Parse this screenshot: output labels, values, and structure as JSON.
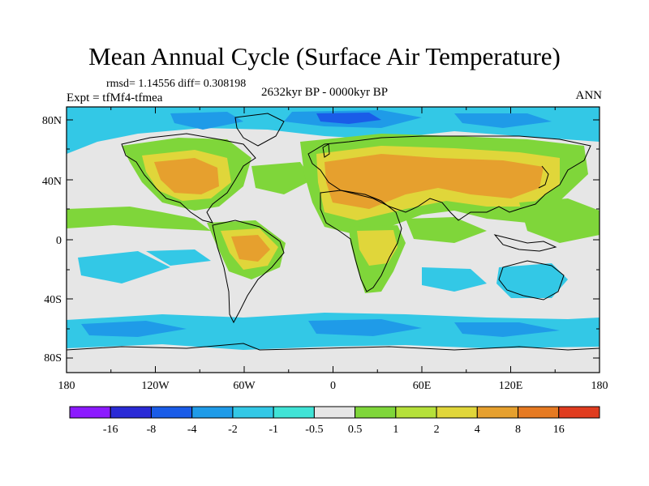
{
  "title": "Mean Annual Cycle (Surface Air Temperature)",
  "stats": "rmsd= 1.14556 diff= 0.308198",
  "experiment": "Expt = tfMf4-tfmea",
  "period": "2632kyr BP - 0000kyr BP",
  "season": "ANN",
  "axes": {
    "x_ticks": [
      "180",
      "120W",
      "60W",
      "0",
      "60E",
      "120E",
      "180"
    ],
    "y_ticks": [
      "80N",
      "40N",
      "0",
      "40S",
      "80S"
    ]
  },
  "colorbar": {
    "colors": [
      "#8c1aff",
      "#2a2ad6",
      "#1a5ce8",
      "#1f9be8",
      "#33c8e6",
      "#40e3d6",
      "#e6e6e6",
      "#7fd63a",
      "#b5e03a",
      "#e0d63a",
      "#e6a02e",
      "#e67a22",
      "#e03c1f"
    ],
    "labels": [
      "-16",
      "-8",
      "-4",
      "-2",
      "-1",
      "-0.5",
      "0.5",
      "1",
      "2",
      "4",
      "8",
      "16"
    ]
  },
  "palette": {
    "neutral": "#e6e6e6",
    "cool1": "#33c8e6",
    "cool2": "#40e3d6",
    "cool3": "#1f9be8",
    "cool4": "#1a5ce8",
    "warm1": "#7fd63a",
    "warm2": "#b5e03a",
    "warm3": "#e0d63a",
    "warm4": "#e6a02e",
    "coast": "#000000"
  }
}
